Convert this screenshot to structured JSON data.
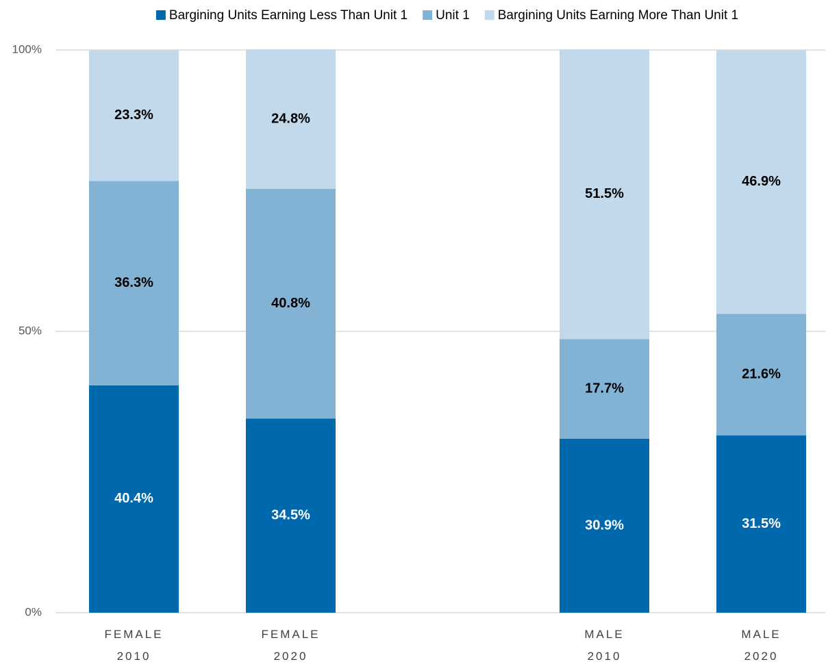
{
  "chart_data": {
    "type": "stacked_bar",
    "categories": [
      "FEMALE 2010",
      "FEMALE 2020",
      null,
      "MALE 2010",
      "MALE 2020"
    ],
    "series": [
      {
        "name": "Bargining Units Earning Less Than Unit 1",
        "color": "#0068ad",
        "label_color": "#ffffff",
        "values": [
          40.4,
          34.5,
          null,
          30.9,
          31.5
        ],
        "value_labels": [
          "40.4%",
          "34.5%",
          null,
          "30.9%",
          "31.5%"
        ]
      },
      {
        "name": "Unit 1",
        "color": "#82b3d5",
        "label_color": "#000000",
        "values": [
          36.3,
          40.8,
          null,
          17.7,
          21.6
        ],
        "value_labels": [
          "36.3%",
          "40.8%",
          null,
          "17.7%",
          "21.6%"
        ]
      },
      {
        "name": "Bargining Units Earning More Than Unit 1",
        "color": "#c2d9eb",
        "label_color": "#000000",
        "values": [
          23.3,
          24.8,
          null,
          51.5,
          46.9
        ],
        "value_labels": [
          "23.3%",
          "24.8%",
          null,
          "51.5%",
          "46.9%"
        ]
      }
    ],
    "ylim": [
      0,
      100
    ],
    "yticks": [
      {
        "value": 0,
        "label": "0%"
      },
      {
        "value": 50,
        "label": "50%"
      },
      {
        "value": 100,
        "label": "100%"
      }
    ],
    "grid": true,
    "legend": "top"
  }
}
